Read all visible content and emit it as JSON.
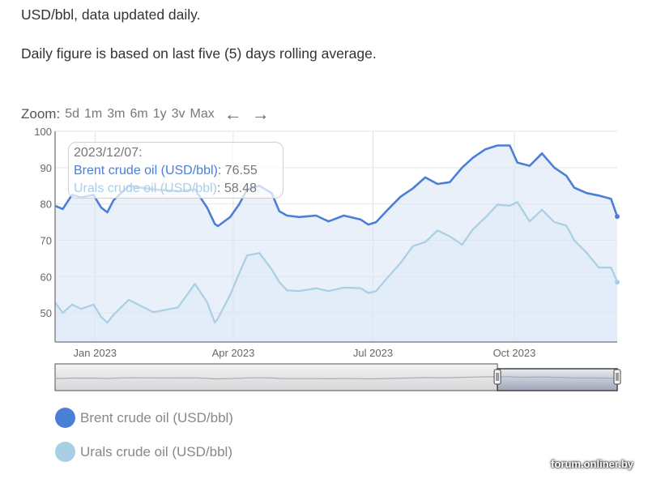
{
  "intro": {
    "line1": "USD/bbl, data updated daily.",
    "line2": "Daily figure is based on last five (5) days rolling average."
  },
  "zoom": {
    "label": "Zoom:",
    "options": [
      "5d",
      "1m",
      "3m",
      "6m",
      "1y",
      "3v",
      "Max"
    ],
    "prev_icon": "arrow-left-icon",
    "next_icon": "arrow-right-icon"
  },
  "tooltip": {
    "date": "2023/12/07:",
    "brent_label": "Brent crude oil (USD/bbl)",
    "brent_value": "76.55",
    "urals_label": "Urals crude oil (USD/bbl)",
    "urals_value": "58.48"
  },
  "legend": {
    "brent": "Brent crude oil (USD/bbl)",
    "urals": "Urals crude oil (USD/bbl)"
  },
  "watermark": "forum.onliner.by",
  "chart_data": {
    "type": "line",
    "x_start": "2022-12-06",
    "x_end": "2023-12-07",
    "ylim": [
      42,
      100
    ],
    "yticks": [
      50,
      60,
      70,
      80,
      90,
      100
    ],
    "xticks": [
      {
        "label": "Jan 2023",
        "date": "2023-01-01"
      },
      {
        "label": "Apr 2023",
        "date": "2023-04-01"
      },
      {
        "label": "Jul 2023",
        "date": "2023-07-01"
      },
      {
        "label": "Oct 2023",
        "date": "2023-10-01"
      }
    ],
    "grid": true,
    "legend_position": "bottom-left",
    "navigator_selection": [
      "2023-09-20",
      "2023-12-07"
    ],
    "x": [
      "2022-12-06",
      "2022-12-11",
      "2022-12-17",
      "2022-12-23",
      "2022-12-31",
      "2023-01-05",
      "2023-01-09",
      "2023-01-13",
      "2023-01-23",
      "2023-02-08",
      "2023-02-24",
      "2023-03-07",
      "2023-03-15",
      "2023-03-20",
      "2023-03-22",
      "2023-03-30",
      "2023-04-05",
      "2023-04-10",
      "2023-04-18",
      "2023-04-26",
      "2023-05-01",
      "2023-05-06",
      "2023-05-14",
      "2023-05-25",
      "2023-06-02",
      "2023-06-12",
      "2023-06-23",
      "2023-06-28",
      "2023-07-03",
      "2023-07-11",
      "2023-07-19",
      "2023-07-27",
      "2023-08-04",
      "2023-08-12",
      "2023-08-20",
      "2023-08-28",
      "2023-09-04",
      "2023-09-12",
      "2023-09-20",
      "2023-09-28",
      "2023-10-03",
      "2023-10-11",
      "2023-10-19",
      "2023-10-27",
      "2023-11-04",
      "2023-11-09",
      "2023-11-17",
      "2023-11-25",
      "2023-12-03",
      "2023-12-07"
    ],
    "series": [
      {
        "name": "Brent crude oil (USD/bbl)",
        "color": "#4a7fd6",
        "values": [
          79.5,
          78.6,
          82.5,
          81.8,
          82.5,
          79,
          77.7,
          81,
          85,
          84,
          83.5,
          84,
          79,
          74.5,
          73.9,
          76.4,
          80,
          84,
          85,
          83,
          78,
          76.8,
          76.4,
          76.8,
          75.2,
          76.8,
          75.7,
          74.3,
          75,
          78.6,
          82,
          84.3,
          87.3,
          85.5,
          86,
          90,
          92.7,
          95,
          96.1,
          96.1,
          91.4,
          90.5,
          93.9,
          90,
          87.7,
          84.5,
          83,
          82.3,
          81.4,
          76.55
        ]
      },
      {
        "name": "Urals crude oil (USD/bbl)",
        "color": "#a8cfe3",
        "values": [
          52.9,
          50,
          52.3,
          51.1,
          52.3,
          48.9,
          47.3,
          49.5,
          53.6,
          50.2,
          51.5,
          58,
          53,
          47.3,
          48.5,
          55,
          61,
          65.8,
          66.5,
          62,
          58.5,
          56.2,
          56,
          56.8,
          56,
          57,
          56.8,
          55.5,
          56,
          60,
          63.8,
          68.4,
          69.5,
          72.7,
          71.1,
          68.8,
          73,
          76.2,
          79.8,
          79.5,
          80.5,
          75.2,
          78.4,
          75,
          74,
          70,
          66.6,
          62.5,
          62.5,
          58.48
        ]
      }
    ]
  }
}
